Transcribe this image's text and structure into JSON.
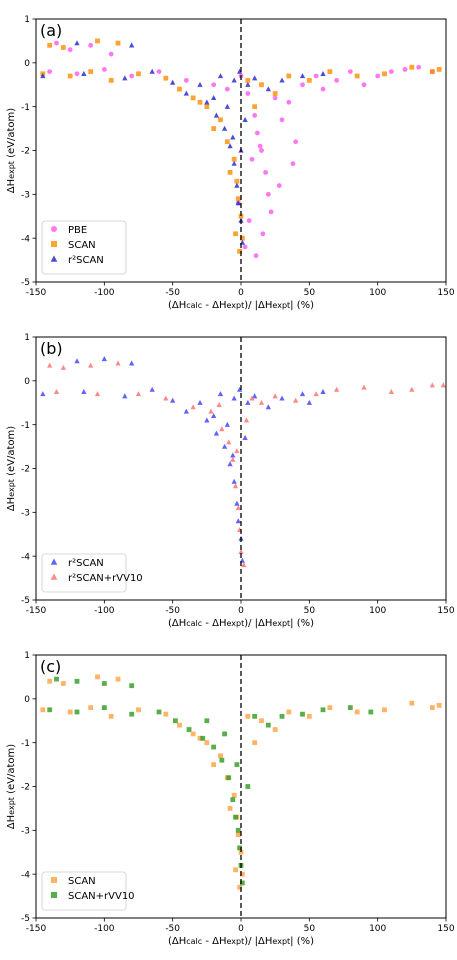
{
  "chart_data": [
    {
      "type": "scatter",
      "panel_label": "(a)",
      "xlabel_parts": [
        "(ΔH",
        "calc",
        " - ΔH",
        "expt",
        ")/ |ΔH",
        "expt",
        "| (%)"
      ],
      "ylabel_parts": [
        "ΔH",
        "expt",
        " (eV/atom)"
      ],
      "xlim": [
        -150,
        150
      ],
      "ylim": [
        -5,
        1
      ],
      "xticks": [
        -150,
        -100,
        -50,
        0,
        50,
        100,
        150
      ],
      "yticks": [
        -5,
        -4,
        -3,
        -2,
        -1,
        0,
        1
      ],
      "grid": false,
      "legend_position": "lower-left",
      "reference_line_x": 0,
      "series": [
        {
          "name": "PBE",
          "marker": "circle",
          "color": "#ff55ee",
          "points": [
            [
              -135,
              0.45
            ],
            [
              -125,
              0.3
            ],
            [
              -110,
              0.4
            ],
            [
              -95,
              0.2
            ],
            [
              -140,
              -0.2
            ],
            [
              -120,
              -0.25
            ],
            [
              -100,
              -0.15
            ],
            [
              -80,
              -0.3
            ],
            [
              -60,
              -0.2
            ],
            [
              -40,
              -0.4
            ],
            [
              -20,
              -0.5
            ],
            [
              -10,
              -0.6
            ],
            [
              0,
              -0.3
            ],
            [
              5,
              -0.7
            ],
            [
              10,
              -1.2
            ],
            [
              12,
              -1.6
            ],
            [
              15,
              -2.0
            ],
            [
              18,
              -2.5
            ],
            [
              20,
              -3.0
            ],
            [
              22,
              -3.4
            ],
            [
              25,
              -0.8
            ],
            [
              30,
              -1.3
            ],
            [
              35,
              -0.9
            ],
            [
              40,
              -1.8
            ],
            [
              8,
              -2.2
            ],
            [
              6,
              -3.6
            ],
            [
              3,
              -4.2
            ],
            [
              45,
              -0.5
            ],
            [
              55,
              -0.3
            ],
            [
              60,
              -0.6
            ],
            [
              70,
              -0.4
            ],
            [
              80,
              -0.2
            ],
            [
              90,
              -0.5
            ],
            [
              100,
              -0.3
            ],
            [
              110,
              -0.2
            ],
            [
              120,
              -0.15
            ],
            [
              130,
              -0.1
            ],
            [
              140,
              -0.2
            ],
            [
              -2,
              -3.2
            ],
            [
              14,
              -1.9
            ],
            [
              28,
              -2.8
            ],
            [
              38,
              -2.3
            ],
            [
              16,
              -3.9
            ],
            [
              11,
              -4.4
            ]
          ]
        },
        {
          "name": "SCAN",
          "marker": "square",
          "color": "#ff8c00",
          "points": [
            [
              -140,
              0.4
            ],
            [
              -130,
              0.35
            ],
            [
              -105,
              0.5
            ],
            [
              -90,
              0.45
            ],
            [
              -145,
              -0.25
            ],
            [
              -125,
              -0.3
            ],
            [
              -110,
              -0.2
            ],
            [
              -95,
              -0.4
            ],
            [
              -75,
              -0.25
            ],
            [
              -55,
              -0.35
            ],
            [
              -45,
              -0.6
            ],
            [
              -35,
              -0.8
            ],
            [
              -25,
              -1.0
            ],
            [
              -15,
              -1.3
            ],
            [
              -10,
              -1.8
            ],
            [
              -5,
              -2.2
            ],
            [
              -3,
              -2.7
            ],
            [
              -2,
              -3.1
            ],
            [
              0,
              -3.5
            ],
            [
              1,
              -4.0
            ],
            [
              5,
              -0.4
            ],
            [
              15,
              -0.5
            ],
            [
              25,
              -0.7
            ],
            [
              35,
              -0.3
            ],
            [
              50,
              -0.4
            ],
            [
              65,
              -0.2
            ],
            [
              85,
              -0.3
            ],
            [
              105,
              -0.25
            ],
            [
              125,
              -0.1
            ],
            [
              140,
              -0.2
            ],
            [
              145,
              -0.15
            ],
            [
              -20,
              -1.5
            ],
            [
              -8,
              -2.5
            ],
            [
              -30,
              -0.9
            ],
            [
              10,
              -1.0
            ],
            [
              -4,
              -3.9
            ],
            [
              -1,
              -4.3
            ]
          ]
        },
        {
          "name": "r²SCAN",
          "marker": "triangle",
          "color": "#1f1fcc",
          "points": [
            [
              -120,
              0.45
            ],
            [
              -80,
              0.4
            ],
            [
              -145,
              -0.3
            ],
            [
              -115,
              -0.25
            ],
            [
              -85,
              -0.35
            ],
            [
              -65,
              -0.2
            ],
            [
              -50,
              -0.45
            ],
            [
              -40,
              -0.7
            ],
            [
              -30,
              -0.5
            ],
            [
              -25,
              -0.9
            ],
            [
              -18,
              -1.2
            ],
            [
              -12,
              -1.5
            ],
            [
              -8,
              -1.9
            ],
            [
              -5,
              -2.3
            ],
            [
              -3,
              -2.8
            ],
            [
              -2,
              -3.2
            ],
            [
              0,
              -3.6
            ],
            [
              1,
              -4.1
            ],
            [
              -15,
              -0.3
            ],
            [
              -5,
              -0.4
            ],
            [
              5,
              -0.5
            ],
            [
              10,
              -0.35
            ],
            [
              20,
              -0.6
            ],
            [
              30,
              -0.4
            ],
            [
              45,
              -0.3
            ],
            [
              60,
              -0.25
            ],
            [
              -10,
              -1.0
            ],
            [
              -6,
              -1.7
            ],
            [
              -20,
              -0.8
            ],
            [
              0,
              -2.0
            ],
            [
              -1,
              -0.2
            ],
            [
              3,
              -1.3
            ]
          ]
        }
      ]
    },
    {
      "type": "scatter",
      "panel_label": "(b)",
      "xlabel_parts": [
        "(ΔH",
        "calc",
        " - ΔH",
        "expt",
        ")/ |ΔH",
        "expt",
        "| (%)"
      ],
      "ylabel_parts": [
        "ΔH",
        "expt",
        " (eV/atom)"
      ],
      "xlim": [
        -150,
        150
      ],
      "ylim": [
        -5,
        1
      ],
      "xticks": [
        -150,
        -100,
        -50,
        0,
        50,
        100,
        150
      ],
      "yticks": [
        -5,
        -4,
        -3,
        -2,
        -1,
        0,
        1
      ],
      "grid": false,
      "legend_position": "lower-left",
      "reference_line_x": 0,
      "series": [
        {
          "name": "r²SCAN",
          "marker": "triangle",
          "color": "#3b3bff",
          "points": [
            [
              -120,
              0.45
            ],
            [
              -100,
              0.5
            ],
            [
              -80,
              0.4
            ],
            [
              -145,
              -0.3
            ],
            [
              -115,
              -0.25
            ],
            [
              -85,
              -0.35
            ],
            [
              -65,
              -0.2
            ],
            [
              -50,
              -0.45
            ],
            [
              -40,
              -0.7
            ],
            [
              -30,
              -0.5
            ],
            [
              -25,
              -0.9
            ],
            [
              -18,
              -1.2
            ],
            [
              -12,
              -1.5
            ],
            [
              -8,
              -1.9
            ],
            [
              -5,
              -2.3
            ],
            [
              -3,
              -2.8
            ],
            [
              -2,
              -3.2
            ],
            [
              0,
              -3.6
            ],
            [
              1,
              -4.1
            ],
            [
              -15,
              -0.3
            ],
            [
              -5,
              -0.4
            ],
            [
              5,
              -0.5
            ],
            [
              10,
              -0.35
            ],
            [
              20,
              -0.6
            ],
            [
              30,
              -0.4
            ],
            [
              45,
              -0.3
            ],
            [
              60,
              -0.25
            ],
            [
              -10,
              -1.0
            ],
            [
              -6,
              -1.7
            ],
            [
              -20,
              -0.8
            ],
            [
              -1,
              -0.2
            ],
            [
              3,
              -1.3
            ],
            [
              50,
              -0.5
            ]
          ]
        },
        {
          "name": "r²SCAN+rVV10",
          "marker": "triangle",
          "color": "#ff6b6b",
          "points": [
            [
              -140,
              0.35
            ],
            [
              -130,
              0.3
            ],
            [
              -110,
              0.35
            ],
            [
              -90,
              0.4
            ],
            [
              -135,
              -0.25
            ],
            [
              -105,
              -0.3
            ],
            [
              -75,
              -0.3
            ],
            [
              -55,
              -0.4
            ],
            [
              -35,
              -0.6
            ],
            [
              -22,
              -0.7
            ],
            [
              -14,
              -1.1
            ],
            [
              -9,
              -1.4
            ],
            [
              -6,
              -1.8
            ],
            [
              -4,
              -2.4
            ],
            [
              -2,
              -2.9
            ],
            [
              -1,
              -3.4
            ],
            [
              0,
              -3.9
            ],
            [
              2,
              -4.2
            ],
            [
              8,
              -0.4
            ],
            [
              15,
              -0.5
            ],
            [
              25,
              -0.35
            ],
            [
              40,
              -0.45
            ],
            [
              55,
              -0.3
            ],
            [
              70,
              -0.2
            ],
            [
              90,
              -0.15
            ],
            [
              110,
              -0.25
            ],
            [
              125,
              -0.2
            ],
            [
              140,
              -0.1
            ],
            [
              148,
              -0.1
            ],
            [
              -16,
              -0.55
            ],
            [
              -3,
              -1.6
            ],
            [
              4,
              -0.9
            ]
          ]
        }
      ]
    },
    {
      "type": "scatter",
      "panel_label": "(c)",
      "xlabel_parts": [
        "(ΔH",
        "calc",
        " - ΔH",
        "expt",
        ")/ |ΔH",
        "expt",
        "| (%)"
      ],
      "ylabel_parts": [
        "ΔH",
        "expt",
        " (eV/atom)"
      ],
      "xlim": [
        -150,
        150
      ],
      "ylim": [
        -5,
        1
      ],
      "xticks": [
        -150,
        -100,
        -50,
        0,
        50,
        100,
        150
      ],
      "yticks": [
        -5,
        -4,
        -3,
        -2,
        -1,
        0,
        1
      ],
      "grid": false,
      "legend_position": "lower-left",
      "reference_line_x": 0,
      "series": [
        {
          "name": "SCAN",
          "marker": "square",
          "color": "#ffa040",
          "points": [
            [
              -140,
              0.4
            ],
            [
              -130,
              0.35
            ],
            [
              -105,
              0.5
            ],
            [
              -90,
              0.45
            ],
            [
              -145,
              -0.25
            ],
            [
              -125,
              -0.3
            ],
            [
              -110,
              -0.2
            ],
            [
              -95,
              -0.4
            ],
            [
              -75,
              -0.25
            ],
            [
              -55,
              -0.35
            ],
            [
              -45,
              -0.6
            ],
            [
              -35,
              -0.8
            ],
            [
              -25,
              -1.0
            ],
            [
              -15,
              -1.3
            ],
            [
              -10,
              -1.8
            ],
            [
              -5,
              -2.2
            ],
            [
              -3,
              -2.7
            ],
            [
              -2,
              -3.1
            ],
            [
              0,
              -3.5
            ],
            [
              1,
              -4.0
            ],
            [
              5,
              -0.4
            ],
            [
              15,
              -0.5
            ],
            [
              25,
              -0.7
            ],
            [
              35,
              -0.3
            ],
            [
              50,
              -0.4
            ],
            [
              65,
              -0.2
            ],
            [
              85,
              -0.3
            ],
            [
              105,
              -0.25
            ],
            [
              125,
              -0.1
            ],
            [
              140,
              -0.2
            ],
            [
              145,
              -0.15
            ],
            [
              -20,
              -1.5
            ],
            [
              -8,
              -2.5
            ],
            [
              -30,
              -0.9
            ],
            [
              10,
              -1.0
            ],
            [
              -4,
              -3.9
            ],
            [
              -1,
              -4.3
            ]
          ]
        },
        {
          "name": "SCAN+rVV10",
          "marker": "square",
          "color": "#2e9a1e",
          "points": [
            [
              -135,
              0.45
            ],
            [
              -120,
              0.4
            ],
            [
              -100,
              0.35
            ],
            [
              -80,
              0.3
            ],
            [
              -140,
              -0.25
            ],
            [
              -120,
              -0.3
            ],
            [
              -100,
              -0.2
            ],
            [
              -80,
              -0.35
            ],
            [
              -60,
              -0.3
            ],
            [
              -48,
              -0.5
            ],
            [
              -38,
              -0.7
            ],
            [
              -28,
              -0.9
            ],
            [
              -20,
              -1.1
            ],
            [
              -14,
              -1.4
            ],
            [
              -9,
              -1.8
            ],
            [
              -6,
              -2.3
            ],
            [
              -4,
              -2.7
            ],
            [
              -2,
              -3.0
            ],
            [
              -1,
              -3.4
            ],
            [
              0,
              -3.8
            ],
            [
              1,
              -4.2
            ],
            [
              10,
              -0.4
            ],
            [
              20,
              -0.6
            ],
            [
              30,
              -0.4
            ],
            [
              45,
              -0.35
            ],
            [
              60,
              -0.25
            ],
            [
              80,
              -0.2
            ],
            [
              95,
              -0.3
            ],
            [
              -25,
              -0.5
            ],
            [
              -12,
              -0.8
            ],
            [
              -3,
              -1.5
            ],
            [
              5,
              -2.0
            ]
          ]
        }
      ]
    }
  ]
}
